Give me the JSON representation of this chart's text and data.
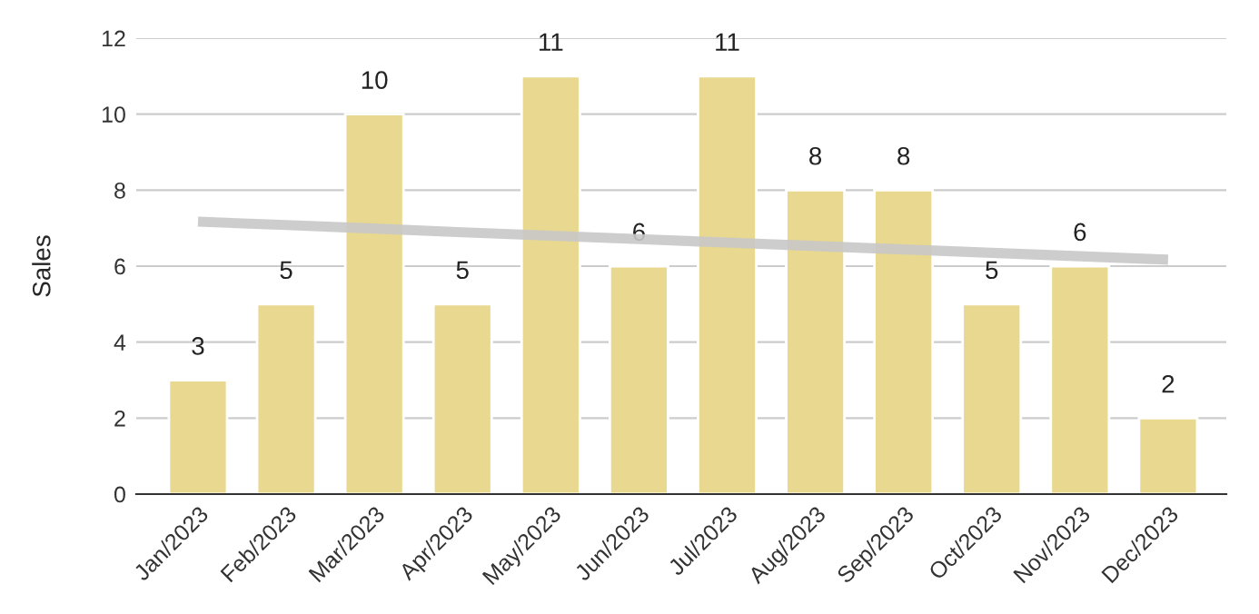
{
  "chart_data": {
    "type": "bar",
    "ylabel": "Sales",
    "categories": [
      "Jan/2023",
      "Feb/2023",
      "Mar/2023",
      "Apr/2023",
      "May/2023",
      "Jun/2023",
      "Jul/2023",
      "Aug/2023",
      "Sep/2023",
      "Oct/2023",
      "Nov/2023",
      "Dec/2023"
    ],
    "series": [
      {
        "color": "#e8d890",
        "values": [
          3,
          5,
          10,
          5,
          11,
          6,
          11,
          8,
          8,
          5,
          6,
          2
        ],
        "value_labels": [
          "3",
          "5",
          "10",
          "5",
          "11",
          "6",
          "11",
          "8",
          "8",
          "5",
          "6",
          "2"
        ]
      },
      {
        "type": "line",
        "color": "#c8c8c8",
        "values": [
          7.17,
          7.08,
          6.99,
          6.89,
          6.8,
          6.71,
          6.62,
          6.53,
          6.44,
          6.35,
          6.26,
          6.17
        ]
      }
    ],
    "ylim": [
      0,
      12
    ],
    "yticks": [
      0,
      2,
      4,
      6,
      8,
      10,
      12
    ],
    "grid": "y"
  }
}
